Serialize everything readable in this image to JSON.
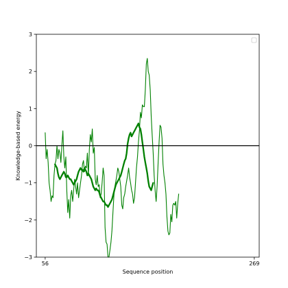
{
  "chart_data": {
    "type": "line",
    "title": "",
    "xlabel": "Sequence position",
    "ylabel": "Knowledge-based energy",
    "xlim": [
      47,
      274
    ],
    "ylim": [
      -3,
      3
    ],
    "x_ticks": [
      56,
      269
    ],
    "x_tick_labels": [
      "56",
      "269"
    ],
    "y_ticks": [
      -3,
      -2,
      -1,
      0,
      1,
      2,
      3
    ],
    "y_tick_labels": [
      "−3",
      "−2",
      "−1",
      "0",
      "1",
      "2",
      "3"
    ],
    "reference_line": {
      "y": 0,
      "color": "#000000"
    },
    "legend": {
      "position": "top-right",
      "entries": []
    },
    "grid": false,
    "series": [
      {
        "style": "thin",
        "color": "#008000",
        "points": [
          [
            56,
            0.35
          ],
          [
            57,
            -0.35
          ],
          [
            58,
            -0.1
          ],
          [
            59,
            -0.45
          ],
          [
            60,
            -1.0
          ],
          [
            61,
            -1.2
          ],
          [
            62,
            -1.5
          ],
          [
            63,
            -1.35
          ],
          [
            64,
            -1.4
          ],
          [
            65,
            -0.8
          ],
          [
            66,
            -0.5
          ],
          [
            67,
            -0.4
          ],
          [
            68,
            0.0
          ],
          [
            69,
            -0.35
          ],
          [
            70,
            -0.1
          ],
          [
            71,
            -0.2
          ],
          [
            72,
            -0.45
          ],
          [
            73,
            0.0
          ],
          [
            74,
            0.4
          ],
          [
            75,
            -0.3
          ],
          [
            76,
            -0.6
          ],
          [
            77,
            -0.3
          ],
          [
            78,
            -1.2
          ],
          [
            79,
            -1.8
          ],
          [
            80,
            -1.45
          ],
          [
            81,
            -1.95
          ],
          [
            82,
            -1.35
          ],
          [
            83,
            -1.2
          ],
          [
            84,
            -1.5
          ],
          [
            85,
            -1.2
          ],
          [
            86,
            -0.9
          ],
          [
            87,
            -1.1
          ],
          [
            88,
            -1.3
          ],
          [
            89,
            -1.0
          ],
          [
            90,
            -1.4
          ],
          [
            91,
            -1.2
          ],
          [
            92,
            -1.0
          ],
          [
            93,
            -0.8
          ],
          [
            94,
            -0.5
          ],
          [
            95,
            -0.4
          ],
          [
            96,
            -0.7
          ],
          [
            97,
            -0.55
          ],
          [
            98,
            -0.6
          ],
          [
            99,
            -0.2
          ],
          [
            100,
            -0.8
          ],
          [
            101,
            -0.1
          ],
          [
            102,
            0.3
          ],
          [
            103,
            0.1
          ],
          [
            104,
            0.45
          ],
          [
            105,
            -0.2
          ],
          [
            106,
            -0.05
          ],
          [
            107,
            -0.9
          ],
          [
            108,
            -1.05
          ],
          [
            109,
            -0.8
          ],
          [
            110,
            -1.1
          ],
          [
            111,
            -1.05
          ],
          [
            112,
            -1.4
          ],
          [
            113,
            -1.3
          ],
          [
            114,
            -1.0
          ],
          [
            115,
            -0.6
          ],
          [
            116,
            -0.8
          ],
          [
            117,
            -2.2
          ],
          [
            118,
            -2.6
          ],
          [
            119,
            -2.65
          ],
          [
            120,
            -3.0
          ],
          [
            121,
            -3.0
          ],
          [
            122,
            -2.8
          ],
          [
            123,
            -2.6
          ],
          [
            124,
            -2.3
          ],
          [
            125,
            -1.8
          ],
          [
            126,
            -1.35
          ],
          [
            127,
            -1.1
          ],
          [
            128,
            -0.95
          ],
          [
            129,
            -0.8
          ],
          [
            130,
            -0.6
          ],
          [
            131,
            -0.7
          ],
          [
            132,
            -0.9
          ],
          [
            133,
            -1.1
          ],
          [
            134,
            -1.6
          ],
          [
            135,
            -1.7
          ],
          [
            136,
            -1.4
          ],
          [
            137,
            -1.3
          ],
          [
            138,
            -1.1
          ],
          [
            139,
            -0.95
          ],
          [
            140,
            -0.8
          ],
          [
            141,
            -0.6
          ],
          [
            142,
            -0.85
          ],
          [
            143,
            -1.0
          ],
          [
            144,
            -1.2
          ],
          [
            145,
            -1.3
          ],
          [
            146,
            -1.55
          ],
          [
            147,
            -1.4
          ],
          [
            148,
            -1.0
          ],
          [
            149,
            -0.6
          ],
          [
            150,
            -0.3
          ],
          [
            151,
            0.1
          ],
          [
            152,
            0.4
          ],
          [
            153,
            0.9
          ],
          [
            154,
            0.75
          ],
          [
            155,
            1.1
          ],
          [
            156,
            1.05
          ],
          [
            157,
            1.05
          ],
          [
            158,
            1.5
          ],
          [
            159,
            2.2
          ],
          [
            160,
            2.35
          ],
          [
            161,
            2.0
          ],
          [
            162,
            1.9
          ],
          [
            163,
            1.5
          ],
          [
            164,
            0.8
          ],
          [
            165,
            0.3
          ],
          [
            166,
            -0.2
          ],
          [
            167,
            -0.8
          ],
          [
            168,
            -1.2
          ],
          [
            169,
            -1.5
          ],
          [
            170,
            -1.1
          ],
          [
            171,
            -0.5
          ],
          [
            172,
            0.1
          ],
          [
            173,
            0.55
          ],
          [
            174,
            0.5
          ],
          [
            175,
            0.2
          ],
          [
            176,
            -0.5
          ],
          [
            177,
            -0.8
          ],
          [
            178,
            -1.0
          ],
          [
            179,
            -1.3
          ],
          [
            180,
            -1.9
          ],
          [
            181,
            -2.3
          ],
          [
            182,
            -2.4
          ],
          [
            183,
            -2.35
          ],
          [
            184,
            -1.85
          ],
          [
            185,
            -2.05
          ],
          [
            186,
            -1.6
          ],
          [
            187,
            -1.55
          ],
          [
            188,
            -1.6
          ],
          [
            189,
            -1.5
          ],
          [
            190,
            -1.95
          ],
          [
            191,
            -1.55
          ],
          [
            192,
            -1.3
          ]
        ]
      },
      {
        "style": "thick",
        "color": "#008000",
        "points": [
          [
            66,
            -0.5
          ],
          [
            67,
            -0.55
          ],
          [
            68,
            -0.6
          ],
          [
            69,
            -0.75
          ],
          [
            70,
            -0.85
          ],
          [
            71,
            -0.9
          ],
          [
            72,
            -0.85
          ],
          [
            73,
            -0.8
          ],
          [
            74,
            -0.75
          ],
          [
            75,
            -0.7
          ],
          [
            76,
            -0.75
          ],
          [
            77,
            -0.85
          ],
          [
            78,
            -0.85
          ],
          [
            79,
            -0.8
          ],
          [
            80,
            -0.85
          ],
          [
            81,
            -0.9
          ],
          [
            82,
            -0.9
          ],
          [
            83,
            -0.95
          ],
          [
            84,
            -1.0
          ],
          [
            85,
            -1.05
          ],
          [
            86,
            -1.0
          ],
          [
            87,
            -0.95
          ],
          [
            88,
            -0.9
          ],
          [
            89,
            -0.8
          ],
          [
            90,
            -0.7
          ],
          [
            91,
            -0.65
          ],
          [
            92,
            -0.6
          ],
          [
            93,
            -0.65
          ],
          [
            94,
            -0.65
          ],
          [
            95,
            -0.7
          ],
          [
            96,
            -0.6
          ],
          [
            97,
            -0.65
          ],
          [
            98,
            -0.7
          ],
          [
            99,
            -0.8
          ],
          [
            100,
            -0.75
          ],
          [
            101,
            -0.8
          ],
          [
            102,
            -0.85
          ],
          [
            103,
            -0.9
          ],
          [
            104,
            -1.0
          ],
          [
            105,
            -1.1
          ],
          [
            106,
            -1.15
          ],
          [
            107,
            -1.2
          ],
          [
            108,
            -1.15
          ],
          [
            109,
            -1.2
          ],
          [
            110,
            -1.2
          ],
          [
            111,
            -1.25
          ],
          [
            112,
            -1.35
          ],
          [
            113,
            -1.4
          ],
          [
            114,
            -1.45
          ],
          [
            115,
            -1.5
          ],
          [
            116,
            -1.5
          ],
          [
            117,
            -1.55
          ],
          [
            118,
            -1.6
          ],
          [
            119,
            -1.6
          ],
          [
            120,
            -1.65
          ],
          [
            121,
            -1.6
          ],
          [
            122,
            -1.55
          ],
          [
            123,
            -1.5
          ],
          [
            124,
            -1.45
          ],
          [
            125,
            -1.35
          ],
          [
            126,
            -1.25
          ],
          [
            127,
            -1.15
          ],
          [
            128,
            -1.05
          ],
          [
            129,
            -1.0
          ],
          [
            130,
            -0.95
          ],
          [
            131,
            -0.9
          ],
          [
            132,
            -0.85
          ],
          [
            133,
            -0.8
          ],
          [
            134,
            -0.7
          ],
          [
            135,
            -0.6
          ],
          [
            136,
            -0.5
          ],
          [
            137,
            -0.4
          ],
          [
            138,
            -0.35
          ],
          [
            139,
            -0.2
          ],
          [
            140,
            0.05
          ],
          [
            141,
            0.2
          ],
          [
            142,
            0.3
          ],
          [
            143,
            0.35
          ],
          [
            144,
            0.25
          ],
          [
            145,
            0.3
          ],
          [
            146,
            0.35
          ],
          [
            147,
            0.4
          ],
          [
            148,
            0.45
          ],
          [
            149,
            0.5
          ],
          [
            150,
            0.55
          ],
          [
            151,
            0.6
          ],
          [
            152,
            0.5
          ],
          [
            153,
            0.45
          ],
          [
            154,
            0.3
          ],
          [
            155,
            0.1
          ],
          [
            156,
            -0.1
          ],
          [
            157,
            -0.3
          ],
          [
            158,
            -0.45
          ],
          [
            159,
            -0.6
          ],
          [
            160,
            -0.75
          ],
          [
            161,
            -0.95
          ],
          [
            162,
            -1.1
          ],
          [
            163,
            -1.15
          ],
          [
            164,
            -1.2
          ],
          [
            165,
            -1.1
          ],
          [
            166,
            -1.0
          ]
        ]
      }
    ]
  }
}
